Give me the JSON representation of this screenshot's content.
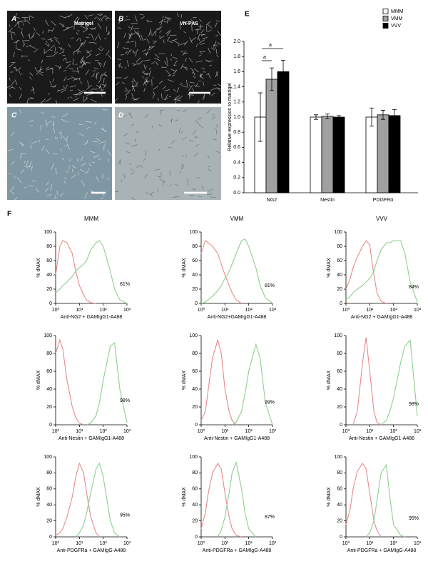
{
  "image_panels": [
    {
      "label": "A",
      "caption": "Matrigel"
    },
    {
      "label": "B",
      "caption": "VN-PAS"
    },
    {
      "label": "C"
    },
    {
      "label": "D"
    }
  ],
  "panel_labels": [
    "E",
    "F"
  ],
  "chart_data": [
    {
      "type": "bar",
      "categories": [
        "NG2",
        "Nestin",
        "PDGFRα"
      ],
      "series": [
        {
          "name": "MMM",
          "color": "#ffffff",
          "values": [
            1.0,
            1.0,
            1.0
          ],
          "errors": [
            0.32,
            0.03,
            0.12
          ]
        },
        {
          "name": "VMM",
          "color": "#a0a0a0",
          "values": [
            1.5,
            1.01,
            1.03
          ],
          "errors": [
            0.15,
            0.03,
            0.06
          ]
        },
        {
          "name": "VVV",
          "color": "#000000",
          "values": [
            1.6,
            1.0,
            1.02
          ],
          "errors": [
            0.15,
            0.02,
            0.08
          ]
        }
      ],
      "ylabel": "Relative expression to matrigel",
      "ylim": [
        0,
        2
      ],
      "yticks": [
        {
          "value": 0,
          "label": "0.0"
        },
        {
          "value": 0.2,
          "label": "0.2"
        },
        {
          "value": 0.4,
          "label": "0.4"
        },
        {
          "value": 0.6,
          "label": "0.6"
        },
        {
          "value": 0.8,
          "label": "0.8"
        },
        {
          "value": 1,
          "label": "1.0"
        },
        {
          "value": 1.2,
          "label": "1.2"
        },
        {
          "value": 1.4,
          "label": "1.4"
        },
        {
          "value": 1.6,
          "label": "1.6"
        },
        {
          "value": 1.8,
          "label": "1.8"
        },
        {
          "value": 2,
          "label": "2.0"
        }
      ],
      "annotations": [
        "a",
        "a"
      ],
      "legend": "top-right"
    },
    {
      "type": "line",
      "title": "MMM",
      "x": [
        1,
        1.5,
        2,
        3,
        5,
        7,
        10,
        15,
        20,
        30,
        50,
        70,
        100,
        200,
        300,
        500,
        1000
      ],
      "log_x": true,
      "xlim": [
        1,
        1000
      ],
      "xticks": [
        {
          "value": 1,
          "label": "10⁰"
        },
        {
          "value": 10,
          "label": "10¹"
        },
        {
          "value": 100,
          "label": "10²"
        },
        {
          "value": 1000,
          "label": "10³"
        }
      ],
      "ylim": [
        0,
        100
      ],
      "yticks": [
        0,
        20,
        40,
        60,
        80,
        100
      ],
      "ylabel": "% dMAX",
      "xlabel": "Anti-NG2 + GAMIgG1-A488",
      "series": [
        {
          "color": "#e88a8a",
          "values": [
            40,
            80,
            88,
            85,
            70,
            45,
            25,
            12,
            5,
            1,
            0,
            null,
            null,
            null,
            null,
            null,
            null
          ]
        },
        {
          "color": "#8fce8f",
          "values": [
            15,
            20,
            25,
            30,
            38,
            45,
            50,
            55,
            60,
            75,
            85,
            88,
            80,
            45,
            20,
            5,
            0
          ]
        }
      ],
      "annotation": "61%"
    },
    {
      "type": "line",
      "title": "VMM",
      "x": [
        1,
        1.5,
        2,
        3,
        5,
        7,
        10,
        15,
        20,
        30,
        50,
        70,
        100,
        200,
        300,
        500,
        1000
      ],
      "log_x": true,
      "xlim": [
        1,
        1000
      ],
      "xticks": [
        {
          "value": 1,
          "label": "10⁰"
        },
        {
          "value": 10,
          "label": "10¹"
        },
        {
          "value": 100,
          "label": "10²"
        },
        {
          "value": 1000,
          "label": "10³"
        }
      ],
      "ylim": [
        0,
        100
      ],
      "yticks": [
        0,
        20,
        40,
        60,
        80,
        100
      ],
      "ylabel": "% dMAX",
      "xlabel": "Anti-NG2+GAMIgG1-A488",
      "series": [
        {
          "color": "#e88a8a",
          "values": [
            70,
            88,
            85,
            80,
            70,
            55,
            40,
            25,
            15,
            5,
            0,
            null,
            null,
            null,
            null,
            null,
            null
          ]
        },
        {
          "color": "#8fce8f",
          "values": [
            0,
            2,
            5,
            10,
            18,
            25,
            35,
            45,
            55,
            70,
            88,
            90,
            80,
            50,
            25,
            8,
            0
          ]
        }
      ],
      "annotation": "81%"
    },
    {
      "type": "line",
      "title": "VVV",
      "x": [
        1,
        1.5,
        2,
        3,
        5,
        7,
        10,
        15,
        20,
        30,
        50,
        70,
        100,
        200,
        300,
        500,
        1000
      ],
      "log_x": true,
      "xlim": [
        1,
        1000
      ],
      "xticks": [
        {
          "value": 1,
          "label": "10⁰"
        },
        {
          "value": 10,
          "label": "10¹"
        },
        {
          "value": 100,
          "label": "10²"
        },
        {
          "value": 1000,
          "label": "10³"
        }
      ],
      "ylim": [
        0,
        100
      ],
      "yticks": [
        0,
        20,
        40,
        60,
        80,
        100
      ],
      "ylabel": "% dMAX",
      "xlabel": "Anti-NG2 + GAMIgG1-A488",
      "series": [
        {
          "color": "#e88a8a",
          "values": [
            20,
            35,
            50,
            65,
            80,
            88,
            82,
            40,
            15,
            3,
            0,
            null,
            null,
            null,
            null,
            null,
            null
          ]
        },
        {
          "color": "#8fce8f",
          "values": [
            5,
            10,
            15,
            20,
            25,
            30,
            35,
            45,
            60,
            75,
            85,
            85,
            88,
            88,
            70,
            30,
            2
          ]
        }
      ],
      "annotation": "84%"
    },
    {
      "type": "line",
      "x": [
        1,
        1.5,
        2,
        3,
        5,
        7,
        10,
        15,
        20,
        30,
        50,
        70,
        100,
        200,
        300,
        500,
        1000
      ],
      "log_x": true,
      "xlim": [
        1,
        1000
      ],
      "xticks": [
        {
          "value": 1,
          "label": "10⁰"
        },
        {
          "value": 10,
          "label": "10¹"
        },
        {
          "value": 100,
          "label": "10²"
        },
        {
          "value": 1000,
          "label": "10³"
        }
      ],
      "ylim": [
        0,
        100
      ],
      "yticks": [
        0,
        20,
        40,
        60,
        80,
        100
      ],
      "ylabel": "% dMAX",
      "xlabel": "Anti-Nestin + GAMIgG1-A488",
      "series": [
        {
          "color": "#e88a8a",
          "values": [
            80,
            95,
            85,
            50,
            20,
            8,
            2,
            0,
            null,
            null,
            null,
            null,
            null,
            null,
            null,
            null,
            null
          ]
        },
        {
          "color": "#8fce8f",
          "values": [
            null,
            null,
            null,
            null,
            null,
            null,
            null,
            null,
            0,
            2,
            10,
            25,
            50,
            88,
            92,
            40,
            2
          ]
        }
      ],
      "annotation": "98%"
    },
    {
      "type": "line",
      "x": [
        1,
        1.5,
        2,
        3,
        5,
        7,
        10,
        15,
        20,
        30,
        50,
        70,
        100,
        200,
        300,
        500,
        1000
      ],
      "log_x": true,
      "xlim": [
        1,
        1000
      ],
      "xticks": [
        {
          "value": 1,
          "label": "10⁰"
        },
        {
          "value": 10,
          "label": "10¹"
        },
        {
          "value": 100,
          "label": "10²"
        },
        {
          "value": 1000,
          "label": "10³"
        }
      ],
      "ylim": [
        0,
        100
      ],
      "yticks": [
        0,
        20,
        40,
        60,
        80,
        100
      ],
      "ylabel": "% dMAX",
      "xlabel": "Anti-Nestin + GAMIgG1-A488",
      "series": [
        {
          "color": "#e88a8a",
          "values": [
            5,
            15,
            40,
            75,
            95,
            80,
            40,
            15,
            5,
            0,
            null,
            null,
            null,
            null,
            null,
            null,
            null
          ]
        },
        {
          "color": "#8fce8f",
          "values": [
            null,
            null,
            null,
            null,
            null,
            null,
            null,
            null,
            0,
            3,
            15,
            35,
            60,
            90,
            75,
            25,
            0
          ]
        }
      ],
      "annotation": "99%"
    },
    {
      "type": "line",
      "x": [
        1,
        1.5,
        2,
        3,
        5,
        7,
        10,
        15,
        20,
        30,
        50,
        70,
        100,
        200,
        300,
        500,
        1000
      ],
      "log_x": true,
      "xlim": [
        1,
        1000
      ],
      "xticks": [
        {
          "value": 1,
          "label": "10⁰"
        },
        {
          "value": 10,
          "label": "10¹"
        },
        {
          "value": 100,
          "label": "10²"
        },
        {
          "value": 1000,
          "label": "10³"
        }
      ],
      "ylim": [
        0,
        100
      ],
      "yticks": [
        0,
        20,
        40,
        60,
        80,
        100
      ],
      "ylabel": "% dMAX",
      "xlabel": "Anti-Nestin + GAMIgG1-A488",
      "series": [
        {
          "color": "#e88a8a",
          "values": [
            null,
            null,
            0,
            15,
            70,
            98,
            60,
            15,
            3,
            0,
            null,
            null,
            null,
            null,
            null,
            null,
            null
          ]
        },
        {
          "color": "#8fce8f",
          "values": [
            null,
            null,
            null,
            null,
            null,
            null,
            null,
            null,
            null,
            0,
            5,
            15,
            30,
            70,
            88,
            95,
            10
          ]
        }
      ],
      "annotation": "98%"
    },
    {
      "type": "line",
      "x": [
        1,
        1.5,
        2,
        3,
        5,
        7,
        10,
        15,
        20,
        30,
        50,
        70,
        100,
        200,
        300,
        500,
        1000
      ],
      "log_x": true,
      "xlim": [
        1,
        1000
      ],
      "xticks": [
        {
          "value": 1,
          "label": "10⁰"
        },
        {
          "value": 10,
          "label": "10¹"
        },
        {
          "value": 100,
          "label": "10²"
        },
        {
          "value": 1000,
          "label": "10³"
        }
      ],
      "ylim": [
        0,
        100
      ],
      "yticks": [
        0,
        20,
        40,
        60,
        80,
        100
      ],
      "ylabel": "% dMAX",
      "xlabel": "Anti-PDGFRa + GAMIgG-A488",
      "series": [
        {
          "color": "#e88a8a",
          "values": [
            2,
            5,
            10,
            25,
            50,
            75,
            92,
            80,
            55,
            25,
            5,
            0,
            null,
            null,
            null,
            null,
            null
          ]
        },
        {
          "color": "#8fce8f",
          "values": [
            null,
            null,
            null,
            null,
            null,
            0,
            5,
            15,
            30,
            55,
            85,
            92,
            75,
            20,
            5,
            0,
            null
          ]
        }
      ],
      "annotation": "95%"
    },
    {
      "type": "line",
      "x": [
        1,
        1.5,
        2,
        3,
        5,
        7,
        10,
        15,
        20,
        30,
        50,
        70,
        100,
        200,
        300,
        500,
        1000
      ],
      "log_x": true,
      "xlim": [
        1,
        1000
      ],
      "xticks": [
        {
          "value": 1,
          "label": "10⁰"
        },
        {
          "value": 10,
          "label": "10¹"
        },
        {
          "value": 100,
          "label": "10²"
        },
        {
          "value": 1000,
          "label": "10³"
        }
      ],
      "ylim": [
        0,
        100
      ],
      "yticks": [
        0,
        20,
        40,
        60,
        80,
        100
      ],
      "ylabel": "% dMAX",
      "xlabel": "Anti-PDGFRa + GAMIgG-A488",
      "series": [
        {
          "color": "#e88a8a",
          "values": [
            10,
            30,
            55,
            80,
            92,
            85,
            55,
            25,
            10,
            2,
            0,
            null,
            null,
            null,
            null,
            null,
            null
          ]
        },
        {
          "color": "#8fce8f",
          "values": [
            null,
            null,
            null,
            null,
            0,
            8,
            25,
            55,
            80,
            93,
            60,
            30,
            10,
            0,
            null,
            null,
            null
          ]
        }
      ],
      "annotation": "87%"
    },
    {
      "type": "line",
      "x": [
        1,
        1.5,
        2,
        3,
        5,
        7,
        10,
        15,
        20,
        30,
        50,
        70,
        100,
        200,
        300,
        500,
        1000
      ],
      "log_x": true,
      "xlim": [
        1,
        1000
      ],
      "xticks": [
        {
          "value": 1,
          "label": "10⁰"
        },
        {
          "value": 10,
          "label": "10¹"
        },
        {
          "value": 100,
          "label": "10²"
        },
        {
          "value": 1000,
          "label": "10³"
        }
      ],
      "ylim": [
        0,
        100
      ],
      "yticks": [
        0,
        20,
        40,
        60,
        80,
        100
      ],
      "ylabel": "% dMAX",
      "xlabel": "Anti-PDGFRa + GAMIgG-A488",
      "series": [
        {
          "color": "#e88a8a",
          "values": [
            15,
            35,
            60,
            82,
            92,
            85,
            55,
            20,
            8,
            0,
            null,
            null,
            null,
            null,
            null,
            null,
            null
          ]
        },
        {
          "color": "#8fce8f",
          "values": [
            null,
            null,
            null,
            null,
            null,
            0,
            5,
            20,
            45,
            80,
            90,
            50,
            15,
            2,
            0,
            null,
            null
          ]
        }
      ],
      "annotation": "95%"
    }
  ]
}
